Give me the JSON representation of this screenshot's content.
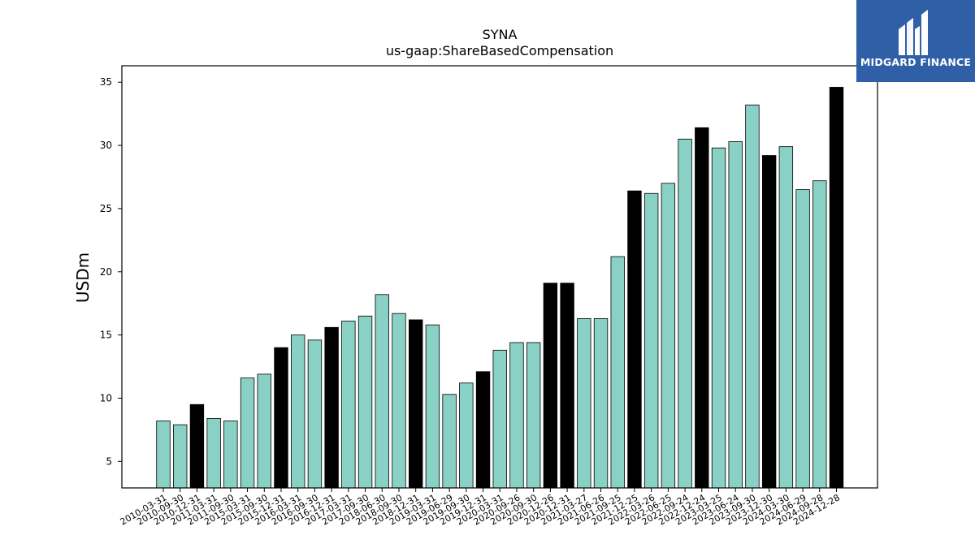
{
  "logo": {
    "text": "MIDGARD FINANCE",
    "icon": "midgard-m-logo-icon"
  },
  "chart_data": {
    "type": "bar",
    "title": "SYNA",
    "subtitle": "us-gaap:ShareBasedCompensation",
    "xlabel": "",
    "ylabel": "USDm",
    "ylim": [
      2.9,
      36.3
    ],
    "yticks": [
      5,
      10,
      15,
      20,
      25,
      30,
      35
    ],
    "grid": false,
    "colors": {
      "quarter": "#88d1c4",
      "fiscal_year_end": "#000000",
      "edge": "#000000"
    },
    "categories": [
      "2010-03-31",
      "2010-09-30",
      "2010-12-31",
      "2011-03-31",
      "2011-09-30",
      "2015-03-31",
      "2015-09-30",
      "2015-12-31",
      "2016-03-31",
      "2016-09-30",
      "2016-12-31",
      "2017-03-31",
      "2017-09-30",
      "2018-06-30",
      "2018-09-30",
      "2018-12-31",
      "2019-03-31",
      "2019-06-29",
      "2019-09-30",
      "2019-12-31",
      "2020-03-31",
      "2020-09-26",
      "2020-09-30",
      "2020-12-26",
      "2020-12-31",
      "2021-03-27",
      "2021-06-26",
      "2021-09-25",
      "2021-12-25",
      "2022-03-26",
      "2022-06-25",
      "2022-09-24",
      "2022-12-24",
      "2023-03-25",
      "2023-06-24",
      "2023-09-30",
      "2023-12-30",
      "2024-03-30",
      "2024-06-29",
      "2024-09-28",
      "2024-12-28"
    ],
    "values": [
      8.2,
      7.9,
      9.5,
      8.4,
      8.2,
      11.6,
      11.9,
      14.0,
      15.0,
      14.6,
      15.6,
      16.1,
      16.5,
      18.2,
      16.7,
      16.2,
      15.8,
      10.3,
      11.2,
      12.1,
      13.8,
      14.4,
      14.4,
      19.1,
      19.1,
      16.3,
      16.3,
      21.2,
      26.4,
      26.2,
      27.0,
      30.5,
      31.4,
      29.8,
      30.3,
      33.2,
      29.2,
      29.9,
      26.5,
      27.2,
      34.6
    ],
    "highlight": [
      false,
      false,
      true,
      false,
      false,
      false,
      false,
      true,
      false,
      false,
      true,
      false,
      false,
      false,
      false,
      true,
      false,
      false,
      false,
      true,
      false,
      false,
      false,
      true,
      true,
      false,
      false,
      false,
      true,
      false,
      false,
      false,
      true,
      false,
      false,
      false,
      true,
      false,
      false,
      false,
      true
    ]
  }
}
